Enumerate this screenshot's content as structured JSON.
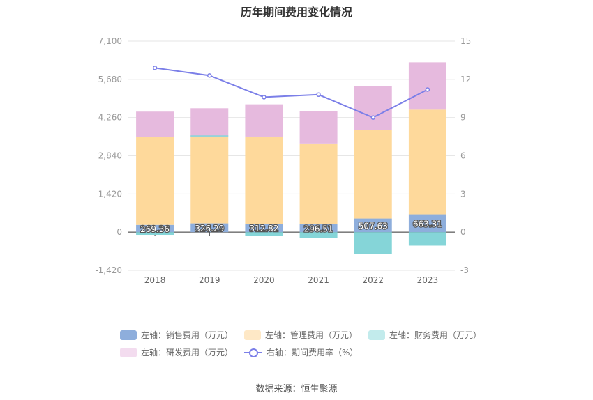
{
  "title": "历年期间费用变化情况",
  "source": "数据来源：恒生聚源",
  "colors": {
    "sales": "#8eaedc",
    "admin": "#fed99b",
    "finance": "#85d5d8",
    "rd": "#e6bade",
    "rate": "#7b7fe8",
    "grid": "#e6e6e6",
    "axis_text": "#999999"
  },
  "legend": [
    {
      "label": "左轴：销售费用（万元）",
      "color": "#8eaedc",
      "kind": "bar"
    },
    {
      "label": "左轴：管理费用（万元）",
      "color": "#fee8c6",
      "kind": "bar"
    },
    {
      "label": "左轴：财务费用（万元）",
      "color": "#c2ebec",
      "kind": "bar"
    },
    {
      "label": "左轴：研发费用（万元）",
      "color": "#f3dcef",
      "kind": "bar"
    },
    {
      "label": "右轴：期间费用率（%）",
      "color": "#7b7fe8",
      "kind": "line"
    }
  ],
  "chart_data": {
    "type": "bar",
    "stacked": true,
    "categories": [
      "2018",
      "2019",
      "2020",
      "2021",
      "2022",
      "2023"
    ],
    "left_axis": {
      "ticks": [
        "7,100",
        "5,680",
        "4,260",
        "2,840",
        "1,420",
        "0",
        "-1,420"
      ],
      "ylim": [
        -1420,
        7100
      ]
    },
    "right_axis": {
      "ticks": [
        "15",
        "12",
        "9",
        "6",
        "3",
        "0",
        "-3"
      ],
      "ylim": [
        -3,
        15
      ]
    },
    "series": [
      {
        "name": "左轴：销售费用（万元）",
        "axis": "left",
        "type": "bar",
        "key": "sales",
        "values": [
          269.36,
          326.29,
          312.82,
          296.51,
          507.63,
          663.31
        ],
        "labels": [
          "269.36",
          "326.29",
          "312.82",
          "296.51",
          "507.63",
          "663.31"
        ]
      },
      {
        "name": "左轴：管理费用（万元）",
        "axis": "left",
        "type": "bar",
        "key": "admin",
        "values": [
          3260,
          3230,
          3240,
          3000,
          3280,
          3890
        ]
      },
      {
        "name": "左轴：财务费用（万元）",
        "axis": "left",
        "type": "bar",
        "key": "finance",
        "values": [
          -100,
          40,
          -140,
          -220,
          -800,
          -500
        ]
      },
      {
        "name": "左轴：研发费用（万元）",
        "axis": "left",
        "type": "bar",
        "key": "rd",
        "values": [
          950,
          1050,
          1200,
          1200,
          1630,
          1760
        ]
      },
      {
        "name": "右轴：期间费用率（%）",
        "axis": "right",
        "type": "line",
        "key": "rate",
        "values": [
          12.9,
          12.3,
          10.6,
          10.8,
          9.0,
          11.2
        ]
      }
    ]
  }
}
